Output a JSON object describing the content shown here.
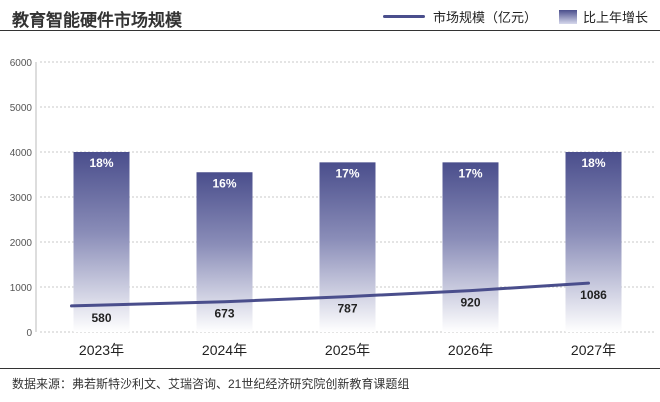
{
  "title": "教育智能硬件市场规模",
  "legend": {
    "line_label": "市场规模（亿元）",
    "bar_label": "比上年增长"
  },
  "source": "数据来源：弗若斯特沙利文、艾瑞咨询、21世纪经济研究院创新教育课题组",
  "colors": {
    "accent": "#4a4e8c",
    "bar_top": "#4a4e8c",
    "bar_bottom": "#ffffff",
    "text": "#222222"
  },
  "chart_data": {
    "type": "bar",
    "categories": [
      "2023年",
      "2024年",
      "2025年",
      "2026年",
      "2027年"
    ],
    "series": [
      {
        "name": "市场规模（亿元）",
        "type": "line",
        "values": [
          580,
          673,
          787,
          920,
          1086
        ],
        "labels": [
          "580",
          "673",
          "787",
          "920",
          "1086"
        ]
      },
      {
        "name": "比上年增长",
        "type": "bar",
        "values": [
          4000,
          3550,
          3770,
          3770,
          4000
        ],
        "labels": [
          "18%",
          "16%",
          "17%",
          "17%",
          "18%"
        ]
      }
    ],
    "yticks": [
      "0",
      "1000",
      "2000",
      "3000",
      "4000",
      "5000",
      "6000"
    ],
    "ylim": [
      0,
      6000
    ],
    "grid": true,
    "legend_position": "top-right"
  }
}
